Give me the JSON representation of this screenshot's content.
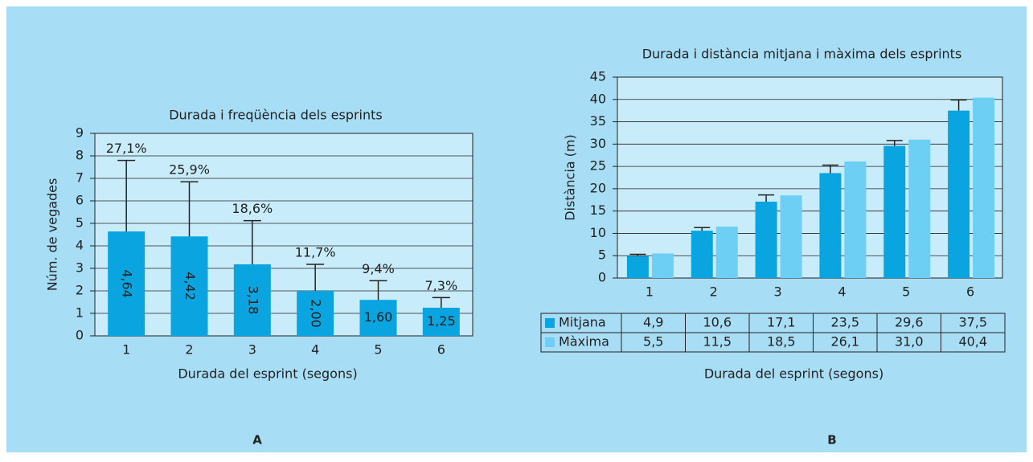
{
  "chart_data": [
    {
      "type": "bar",
      "title": "Durada i freqüència dels esprints",
      "categories": [
        "1",
        "2",
        "3",
        "4",
        "5",
        "6"
      ],
      "values": [
        4.64,
        4.42,
        3.18,
        2.0,
        1.6,
        1.25
      ],
      "value_labels": [
        "4,64",
        "4,42",
        "3,18",
        "2,00",
        "1,60",
        "1,25"
      ],
      "errors": [
        3.16,
        2.43,
        1.94,
        1.18,
        0.85,
        0.45
      ],
      "annotations": [
        "27,1%",
        "25,9%",
        "18,6%",
        "11,7%",
        "9,4%",
        "7,3%"
      ],
      "color": "#0aa5e0",
      "ylim": [
        0,
        9
      ],
      "yticks": [
        0,
        1,
        2,
        3,
        4,
        5,
        6,
        7,
        8,
        9
      ],
      "grid": true,
      "x_label": "Durada del esprint (segons)",
      "y_label": "Núm. de vegades",
      "panel_label": "A"
    },
    {
      "type": "grouped-bar",
      "title": "Durada i distància mitjana i màxima dels esprints",
      "categories": [
        "1",
        "2",
        "3",
        "4",
        "5",
        "6"
      ],
      "series": [
        {
          "name": "Mitjana",
          "color": "#0aa5e0",
          "values": [
            4.9,
            10.6,
            17.1,
            23.5,
            29.6,
            37.5
          ],
          "value_labels": [
            "4,9",
            "10,6",
            "17,1",
            "23,5",
            "29,6",
            "37,5"
          ],
          "errors": [
            0.4,
            0.7,
            1.5,
            1.8,
            1.2,
            2.4
          ]
        },
        {
          "name": "Màxima",
          "color": "#6ccff3",
          "values": [
            5.5,
            11.5,
            18.5,
            26.1,
            31.0,
            40.4
          ],
          "value_labels": [
            "5,5",
            "11,5",
            "18,5",
            "26,1",
            "31,0",
            "40,4"
          ]
        }
      ],
      "ylim": [
        0,
        45
      ],
      "yticks": [
        0,
        5,
        10,
        15,
        20,
        25,
        30,
        35,
        40,
        45
      ],
      "grid": true,
      "x_label": "Durada del esprint (segons)",
      "y_label": "Distància (m)",
      "panel_label": "B"
    }
  ]
}
